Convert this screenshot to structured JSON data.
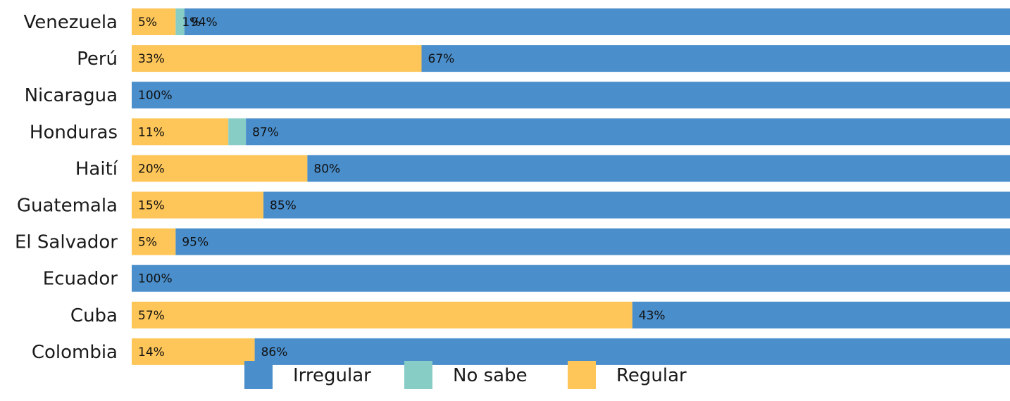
{
  "chart_data": {
    "type": "bar",
    "orientation": "horizontal",
    "stacked": true,
    "percent": true,
    "categories": [
      "Venezuela",
      "Perú",
      "Nicaragua",
      "Honduras",
      "Haití",
      "Guatemala",
      "El Salvador",
      "Ecuador",
      "Cuba",
      "Colombia"
    ],
    "series": [
      {
        "name": "Regular",
        "color": "#FEC659",
        "values": [
          5,
          33,
          0,
          11,
          20,
          15,
          5,
          0,
          57,
          14
        ],
        "labels": [
          "5%",
          "33%",
          "",
          "11%",
          "20%",
          "15%",
          "5%",
          "",
          "57%",
          "14%"
        ]
      },
      {
        "name": "No sabe",
        "color": "#87CDC6",
        "values": [
          1,
          0,
          0,
          2,
          0,
          0,
          0,
          0,
          0,
          0
        ],
        "labels": [
          "1%",
          "",
          "",
          "",
          "",
          "",
          "",
          "",
          "",
          ""
        ]
      },
      {
        "name": "Irregular",
        "color": "#4A8ECB",
        "values": [
          94,
          67,
          100,
          87,
          80,
          85,
          95,
          100,
          43,
          86
        ],
        "labels": [
          "94%",
          "67%",
          "100%",
          "87%",
          "80%",
          "85%",
          "95%",
          "100%",
          "43%",
          "86%"
        ]
      }
    ],
    "legend": {
      "position": "bottom",
      "items": [
        {
          "name": "Irregular",
          "color": "#4A8ECB"
        },
        {
          "name": "No sabe",
          "color": "#87CDC6"
        },
        {
          "name": "Regular",
          "color": "#FEC659"
        }
      ]
    },
    "xlim": [
      0,
      100
    ],
    "grid": false,
    "title": "",
    "xlabel": "",
    "ylabel": ""
  }
}
